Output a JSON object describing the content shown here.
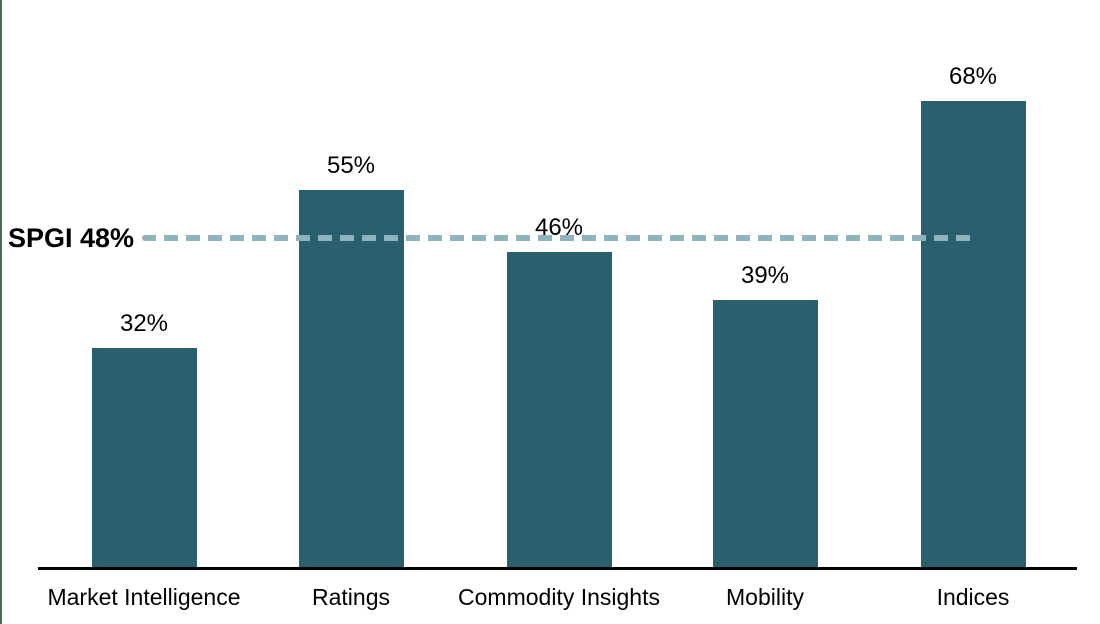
{
  "chart_data": {
    "type": "bar",
    "categories": [
      "Market Intelligence",
      "Ratings",
      "Commodity Insights",
      "Mobility",
      "Indices"
    ],
    "values": [
      32,
      55,
      46,
      39,
      68
    ],
    "value_labels": [
      "32%",
      "55%",
      "46%",
      "39%",
      "68%"
    ],
    "reference_line": {
      "label": "SPGI 48%",
      "value": 48,
      "style": "dashed"
    },
    "title": "",
    "xlabel": "",
    "ylabel": "",
    "ylim": [
      0,
      77
    ],
    "legend": "none",
    "grid": false,
    "colors": {
      "bar": "#2a5f6d",
      "reference_line": "#8fb3bc",
      "axis": "#000000",
      "text": "#000000",
      "accent_border": "#4a7052",
      "background": "#ffffff"
    }
  }
}
